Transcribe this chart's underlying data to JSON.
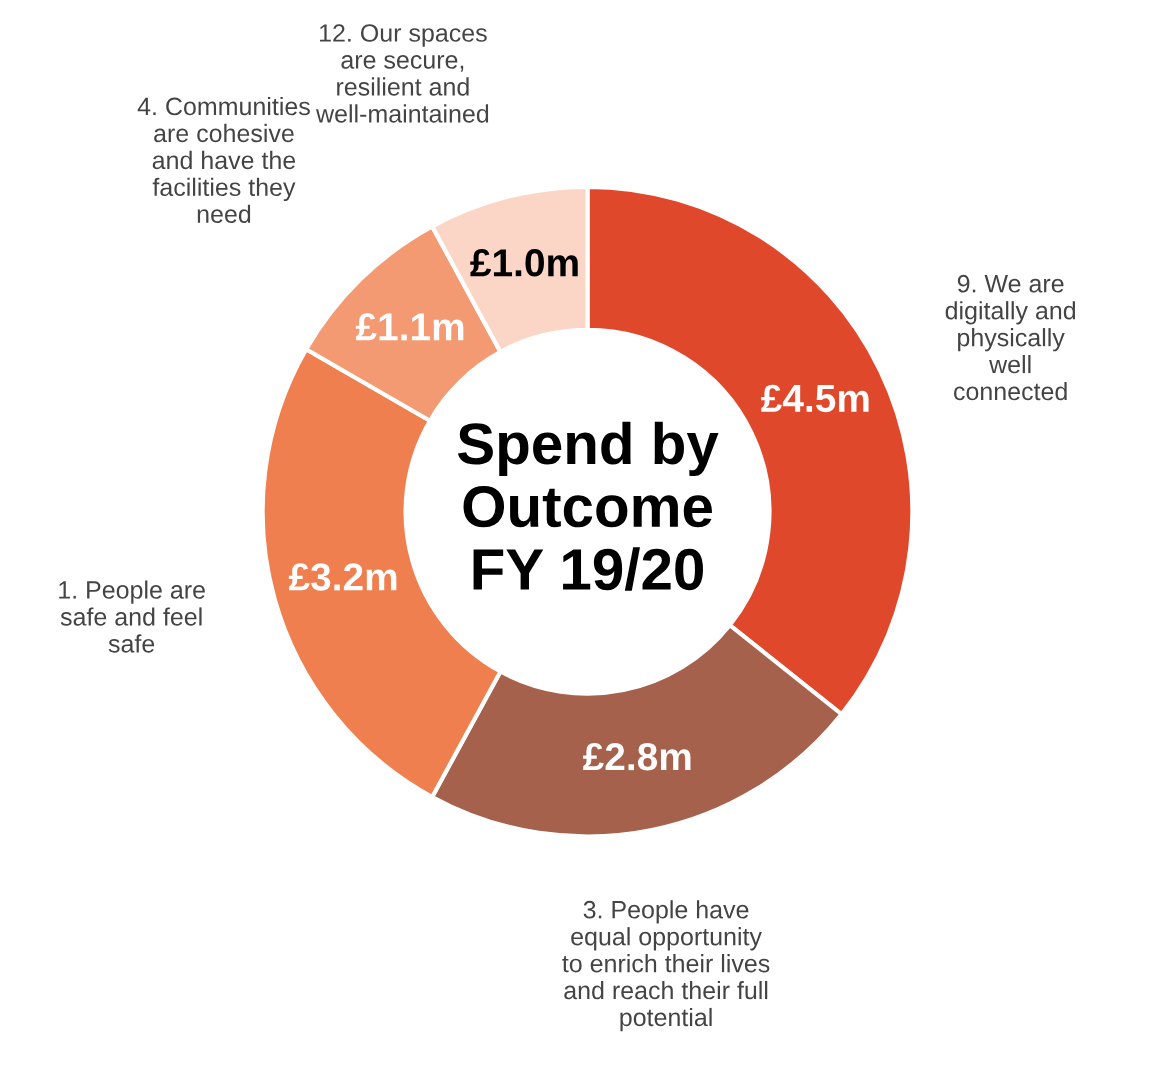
{
  "chart_data": {
    "type": "donut",
    "title": "Spend by\nOutcome\nFY 19/20",
    "categories": [
      "9. We are\ndigitally and\nphysically\nwell\nconnected",
      "3. People have\nequal opportunity\nto enrich their lives\nand reach their full\npotential",
      "1. People are\nsafe and feel\nsafe",
      "4. Communities\nare cohesive\nand have the\nfacilities they\nneed",
      "12. Our spaces\nare secure,\nresilient and\nwell-maintained"
    ],
    "values": [
      4.5,
      2.8,
      3.2,
      1.1,
      1.0
    ],
    "value_labels": [
      "£4.5m",
      "£2.8m",
      "£3.2m",
      "£1.1m",
      "£1.0m"
    ],
    "colors": [
      "#e0482b",
      "#a5614b",
      "#ef7f4f",
      "#f39a72",
      "#fbd6c6"
    ]
  }
}
